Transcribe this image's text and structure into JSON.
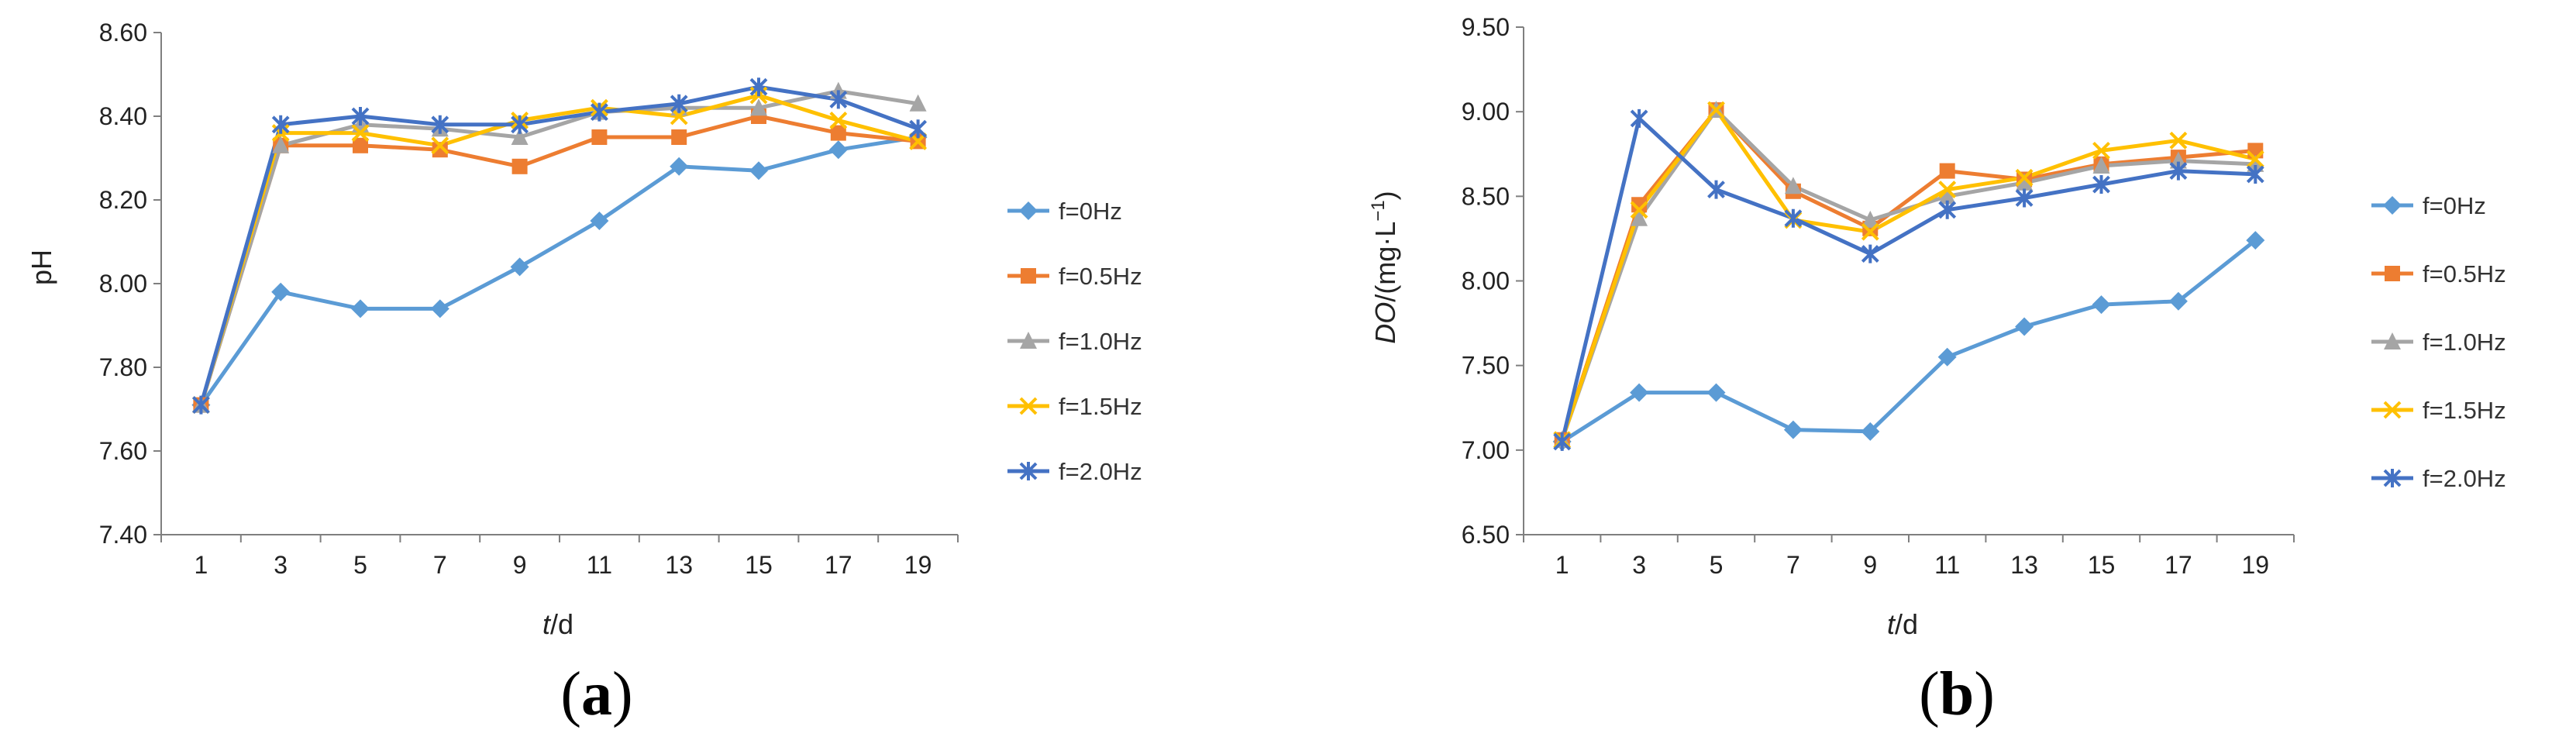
{
  "chart_data": [
    {
      "type": "line",
      "panel_label": "a",
      "ylabel": "pH",
      "xlabel_italic": "t",
      "xlabel_rest": "/d",
      "ylim": [
        7.4,
        8.6
      ],
      "yticks": [
        "7.40",
        "7.60",
        "7.80",
        "8.00",
        "8.20",
        "8.40",
        "8.60"
      ],
      "categories": [
        "1",
        "3",
        "5",
        "7",
        "9",
        "11",
        "13",
        "15",
        "17",
        "19"
      ],
      "series": [
        {
          "name": "f=0Hz",
          "color": "#5B9BD5",
          "marker": "diamond",
          "values": [
            7.71,
            7.98,
            7.94,
            7.94,
            8.04,
            8.15,
            8.28,
            8.27,
            8.32,
            8.35
          ]
        },
        {
          "name": "f=0.5Hz",
          "color": "#ED7D31",
          "marker": "square",
          "values": [
            7.71,
            8.33,
            8.33,
            8.32,
            8.28,
            8.35,
            8.35,
            8.4,
            8.36,
            8.34
          ]
        },
        {
          "name": "f=1.0Hz",
          "color": "#A5A5A5",
          "marker": "triangle",
          "values": [
            7.71,
            8.33,
            8.38,
            8.37,
            8.35,
            8.41,
            8.42,
            8.42,
            8.46,
            8.43
          ]
        },
        {
          "name": "f=1.5Hz",
          "color": "#FFC000",
          "marker": "x",
          "values": [
            7.71,
            8.36,
            8.36,
            8.33,
            8.39,
            8.42,
            8.4,
            8.45,
            8.39,
            8.34
          ]
        },
        {
          "name": "f=2.0Hz",
          "color": "#4472C4",
          "marker": "star",
          "values": [
            7.71,
            8.38,
            8.4,
            8.38,
            8.38,
            8.41,
            8.43,
            8.47,
            8.44,
            8.37
          ]
        }
      ]
    },
    {
      "type": "line",
      "panel_label": "b",
      "ylabel_italic": "DO",
      "ylabel_rest": "/(mg·L",
      "ylabel_sup": "−1",
      "ylabel_close": ")",
      "xlabel_italic": "t",
      "xlabel_rest": "/d",
      "ylim": [
        6.5,
        9.5
      ],
      "yticks": [
        "6.50",
        "7.00",
        "7.50",
        "8.00",
        "8.50",
        "9.00",
        "9.50"
      ],
      "categories": [
        "1",
        "3",
        "5",
        "7",
        "9",
        "11",
        "13",
        "15",
        "17",
        "19"
      ],
      "series": [
        {
          "name": "f=0Hz",
          "color": "#5B9BD5",
          "marker": "diamond",
          "values": [
            7.05,
            7.34,
            7.34,
            7.12,
            7.11,
            7.55,
            7.73,
            7.86,
            7.88,
            8.24
          ]
        },
        {
          "name": "f=0.5Hz",
          "color": "#ED7D31",
          "marker": "square",
          "values": [
            7.06,
            8.45,
            9.01,
            8.53,
            8.31,
            8.65,
            8.6,
            8.69,
            8.73,
            8.77
          ]
        },
        {
          "name": "f=1.0Hz",
          "color": "#A5A5A5",
          "marker": "triangle",
          "values": [
            7.06,
            8.37,
            9.01,
            8.56,
            8.36,
            8.5,
            8.58,
            8.68,
            8.71,
            8.69
          ]
        },
        {
          "name": "f=1.5Hz",
          "color": "#FFC000",
          "marker": "x",
          "values": [
            7.06,
            8.42,
            9.01,
            8.36,
            8.29,
            8.54,
            8.61,
            8.77,
            8.83,
            8.72
          ]
        },
        {
          "name": "f=2.0Hz",
          "color": "#4472C4",
          "marker": "star",
          "values": [
            7.05,
            8.96,
            8.54,
            8.37,
            8.16,
            8.42,
            8.49,
            8.57,
            8.65,
            8.63
          ]
        }
      ]
    }
  ]
}
